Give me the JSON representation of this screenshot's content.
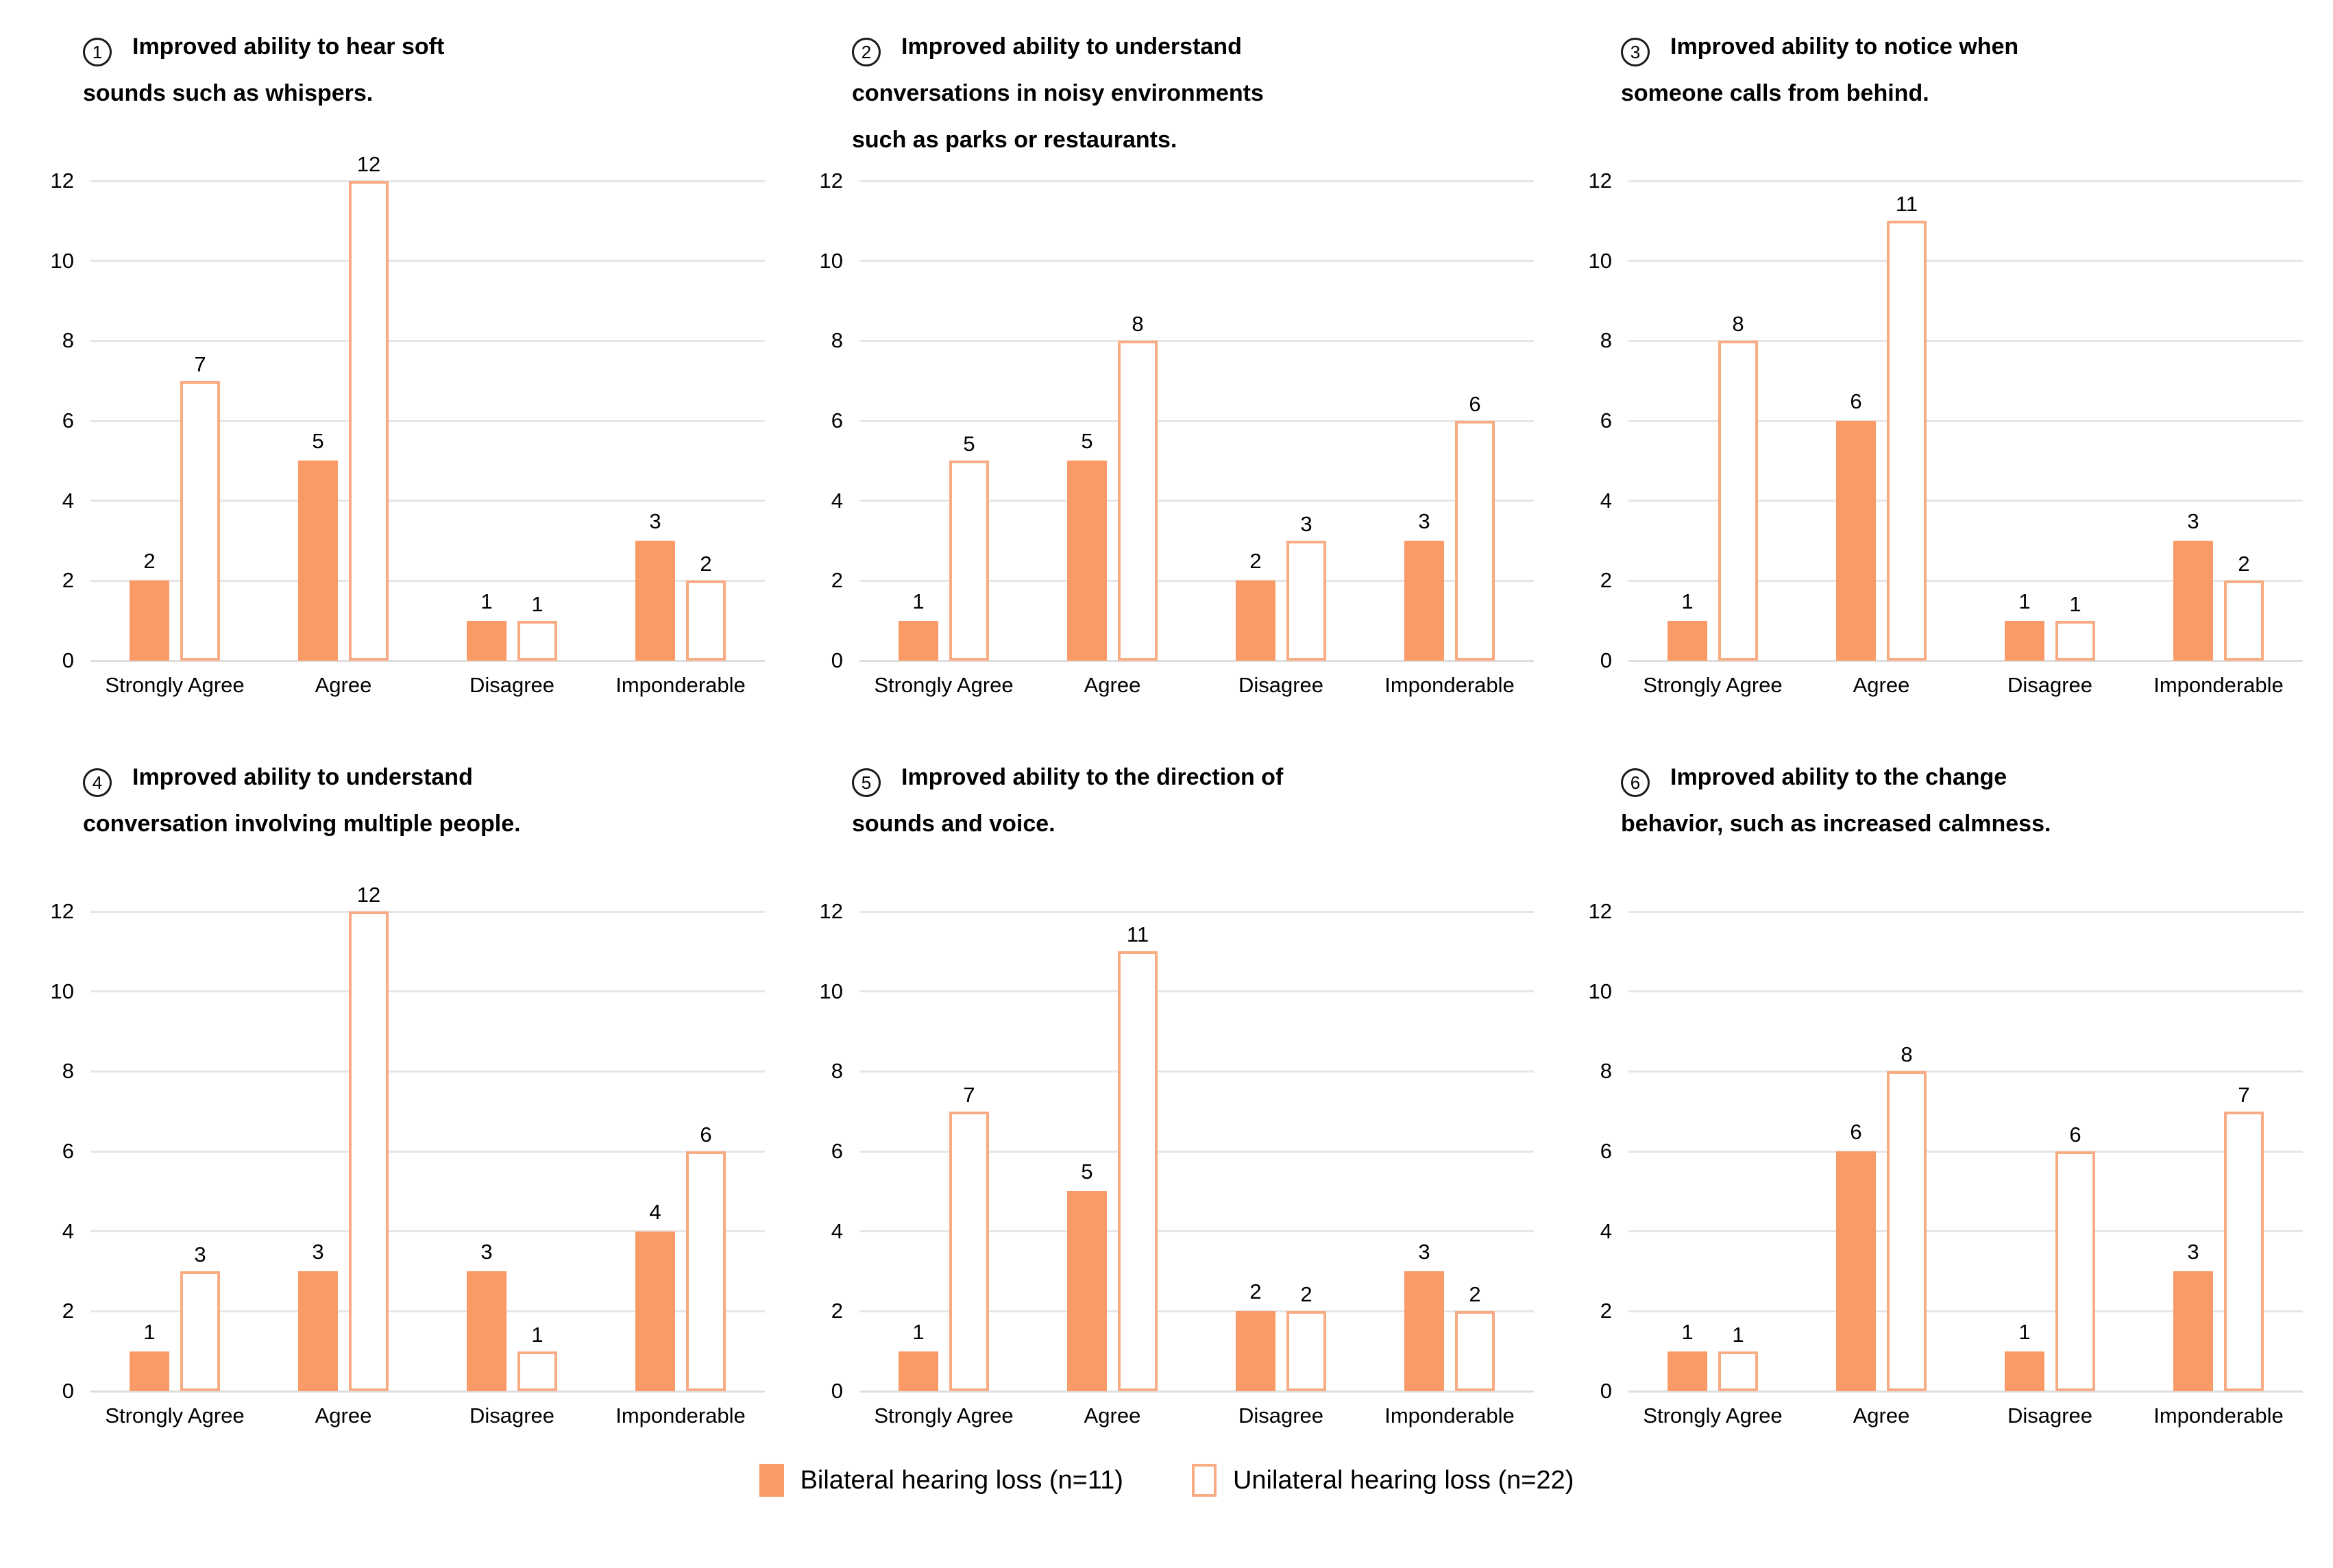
{
  "colors": {
    "bar_solid": "#FA9A66",
    "bar_outline_border": "#F9AC84",
    "gridline": "#E6E6E6",
    "baseline": "#DEDEDE",
    "text": "#000000",
    "background": "#FFFFFF"
  },
  "axis": {
    "ylim": [
      0,
      12
    ],
    "step": 2,
    "ticks": [
      12,
      10,
      8,
      6,
      4,
      2,
      0
    ],
    "grid": "horizontal-only"
  },
  "categories": [
    "Strongly Agree",
    "Agree",
    "Disagree",
    "Imponderable"
  ],
  "legend": {
    "position": "bottom-center",
    "items": [
      {
        "label": "Bilateral hearing loss (n=11)",
        "swatch": "solid"
      },
      {
        "label": "Unilateral hearing loss (n=22)",
        "swatch": "outline"
      }
    ]
  },
  "chart_data": [
    {
      "type": "bar",
      "number": "1",
      "title": "Improved ability to hear soft sounds such as whispers.",
      "title_lines": [
        "Improved ability to hear soft",
        "sounds such as whispers."
      ],
      "categories": [
        "Strongly Agree",
        "Agree",
        "Disagree",
        "Imponderable"
      ],
      "ylim": [
        0,
        12
      ],
      "series": [
        {
          "name": "Bilateral hearing loss (n=11)",
          "values": [
            2,
            5,
            1,
            3
          ]
        },
        {
          "name": "Unilateral hearing loss (n=22)",
          "values": [
            7,
            12,
            1,
            2
          ]
        }
      ]
    },
    {
      "type": "bar",
      "number": "2",
      "title": "Improved ability to understand conversations in noisy environments such as parks or restaurants.",
      "title_lines": [
        "Improved ability to understand",
        "conversations in noisy environments",
        "such as parks or restaurants."
      ],
      "categories": [
        "Strongly Agree",
        "Agree",
        "Disagree",
        "Imponderable"
      ],
      "ylim": [
        0,
        12
      ],
      "series": [
        {
          "name": "Bilateral hearing loss (n=11)",
          "values": [
            1,
            5,
            2,
            3
          ]
        },
        {
          "name": "Unilateral hearing loss (n=22)",
          "values": [
            5,
            8,
            3,
            6
          ]
        }
      ]
    },
    {
      "type": "bar",
      "number": "3",
      "title": "Improved ability to notice when someone calls from behind.",
      "title_lines": [
        "Improved ability to notice when",
        "someone calls from behind."
      ],
      "categories": [
        "Strongly Agree",
        "Agree",
        "Disagree",
        "Imponderable"
      ],
      "ylim": [
        0,
        12
      ],
      "series": [
        {
          "name": "Bilateral hearing loss (n=11)",
          "values": [
            1,
            6,
            1,
            3
          ]
        },
        {
          "name": "Unilateral hearing loss (n=22)",
          "values": [
            8,
            11,
            1,
            2
          ]
        }
      ]
    },
    {
      "type": "bar",
      "number": "4",
      "title": "Improved ability to understand conversation involving multiple people.",
      "title_lines": [
        "Improved ability to understand",
        "conversation involving multiple people."
      ],
      "categories": [
        "Strongly Agree",
        "Agree",
        "Disagree",
        "Imponderable"
      ],
      "ylim": [
        0,
        12
      ],
      "series": [
        {
          "name": "Bilateral hearing loss (n=11)",
          "values": [
            1,
            3,
            3,
            4
          ]
        },
        {
          "name": "Unilateral hearing loss (n=22)",
          "values": [
            3,
            12,
            1,
            6
          ]
        }
      ]
    },
    {
      "type": "bar",
      "number": "5",
      "title": "Improved ability to the direction of sounds and voice.",
      "title_lines": [
        "Improved ability to the direction of",
        "sounds and voice."
      ],
      "categories": [
        "Strongly Agree",
        "Agree",
        "Disagree",
        "Imponderable"
      ],
      "ylim": [
        0,
        12
      ],
      "series": [
        {
          "name": "Bilateral hearing loss (n=11)",
          "values": [
            1,
            5,
            2,
            3
          ]
        },
        {
          "name": "Unilateral hearing loss (n=22)",
          "values": [
            7,
            11,
            2,
            2
          ]
        }
      ]
    },
    {
      "type": "bar",
      "number": "6",
      "title": "Improved ability to the change behavior, such as increased calmness.",
      "title_lines": [
        "Improved ability to the change",
        "behavior, such as increased calmness."
      ],
      "categories": [
        "Strongly Agree",
        "Agree",
        "Disagree",
        "Imponderable"
      ],
      "ylim": [
        0,
        12
      ],
      "series": [
        {
          "name": "Bilateral hearing loss (n=11)",
          "values": [
            1,
            6,
            1,
            3
          ]
        },
        {
          "name": "Unilateral hearing loss (n=22)",
          "values": [
            1,
            8,
            6,
            7
          ]
        }
      ]
    }
  ]
}
